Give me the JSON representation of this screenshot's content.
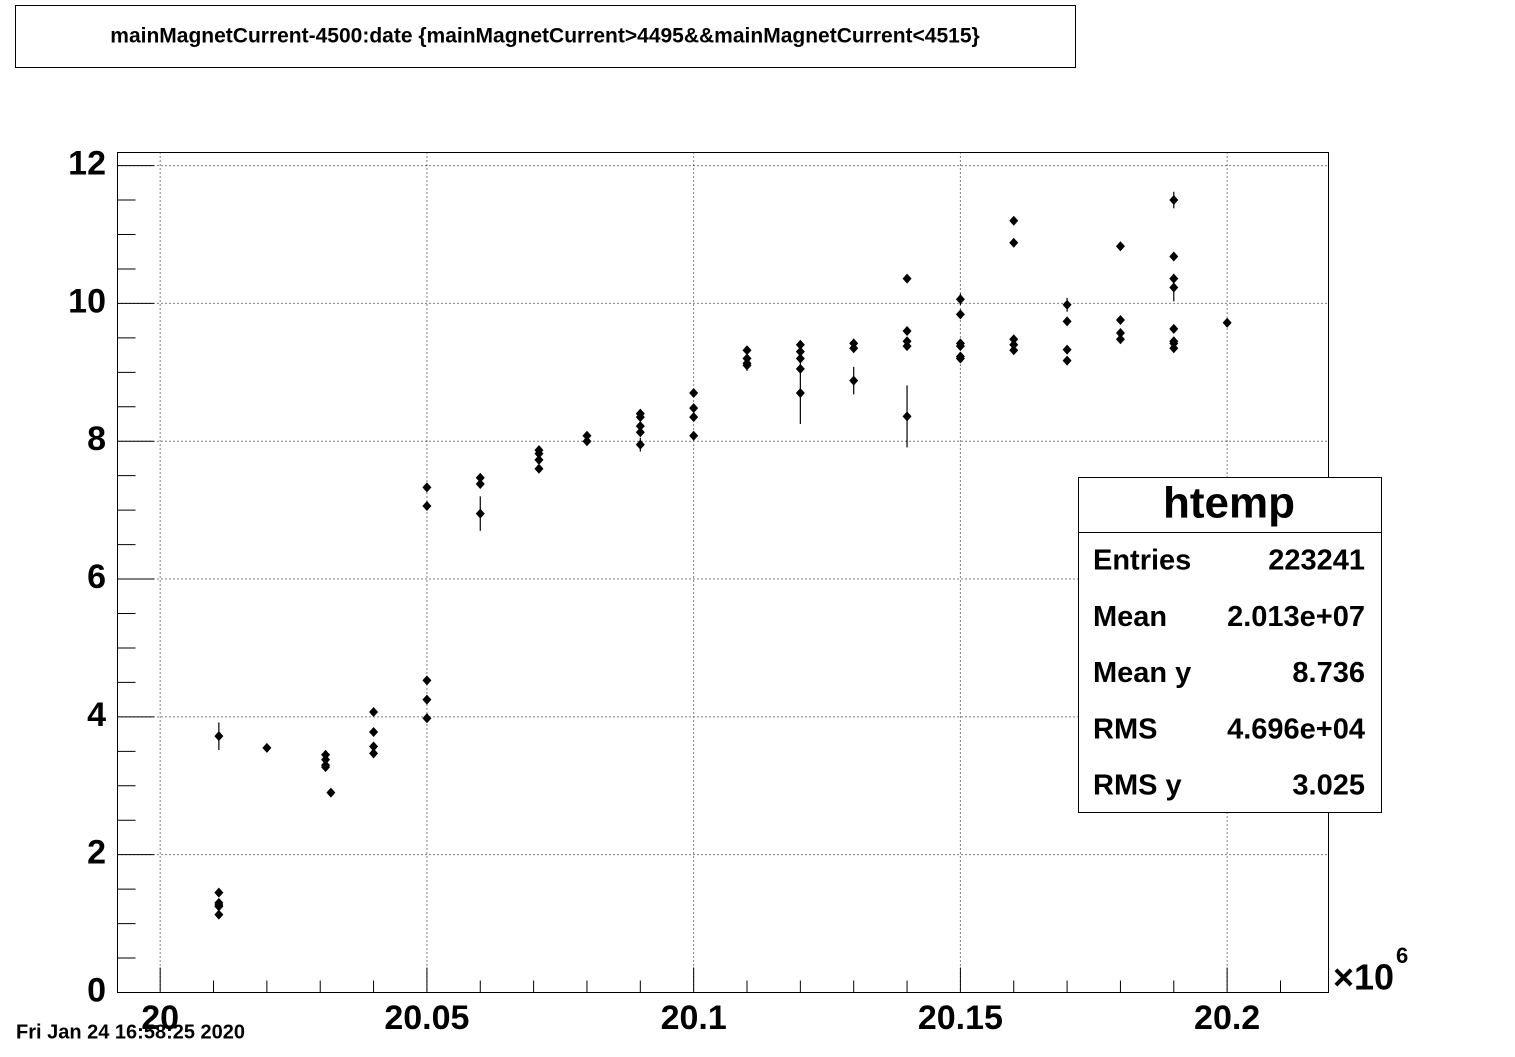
{
  "chart_data": {
    "type": "scatter",
    "title": "mainMagnetCurrent-4500:date {mainMagnetCurrent>4495&&mainMagnetCurrent<4515}",
    "timestamp": "Fri Jan 24 16:58:25 2020",
    "x_multiplier": "×10",
    "x_exponent": "6",
    "xlim": [
      19.992,
      20.219
    ],
    "ylim": [
      0,
      12.19
    ],
    "xticks": [
      20,
      20.05,
      20.1,
      20.15,
      20.2
    ],
    "yticks": [
      0,
      2,
      4,
      6,
      8,
      10,
      12
    ],
    "grid": true,
    "color": "#000000",
    "x": [
      20.011,
      20.011,
      20.011,
      20.011,
      20.011,
      20.011,
      20.02,
      20.031,
      20.031,
      20.031,
      20.031,
      20.032,
      20.04,
      20.04,
      20.04,
      20.04,
      20.05,
      20.05,
      20.05,
      20.05,
      20.05,
      20.06,
      20.06,
      20.06,
      20.071,
      20.071,
      20.071,
      20.071,
      20.08,
      20.08,
      20.09,
      20.09,
      20.09,
      20.09,
      20.09,
      20.1,
      20.1,
      20.1,
      20.1,
      20.11,
      20.11,
      20.11,
      20.11,
      20.12,
      20.12,
      20.12,
      20.12,
      20.12,
      20.13,
      20.13,
      20.13,
      20.14,
      20.14,
      20.14,
      20.14,
      20.14,
      20.15,
      20.15,
      20.15,
      20.15,
      20.15,
      20.15,
      20.16,
      20.16,
      20.16,
      20.16,
      20.16,
      20.17,
      20.17,
      20.17,
      20.17,
      20.18,
      20.18,
      20.18,
      20.18,
      20.19,
      20.19,
      20.19,
      20.19,
      20.19,
      20.19,
      20.19,
      20.19,
      20.2
    ],
    "values": [
      3.72,
      1.45,
      1.3,
      1.27,
      1.25,
      1.13,
      3.55,
      3.45,
      3.38,
      3.3,
      3.27,
      2.9,
      4.07,
      3.78,
      3.57,
      3.47,
      7.33,
      7.06,
      4.53,
      4.25,
      3.98,
      7.47,
      7.38,
      6.95,
      7.87,
      7.82,
      7.73,
      7.6,
      8.08,
      8.0,
      8.4,
      8.35,
      8.22,
      8.13,
      7.95,
      8.7,
      8.48,
      8.35,
      8.08,
      9.32,
      9.2,
      9.13,
      9.1,
      9.4,
      9.3,
      9.2,
      9.05,
      8.7,
      9.42,
      9.35,
      8.88,
      10.36,
      9.6,
      9.45,
      9.38,
      8.36,
      10.06,
      9.84,
      9.42,
      9.38,
      9.23,
      9.2,
      11.2,
      10.88,
      9.48,
      9.4,
      9.32,
      9.98,
      9.74,
      9.33,
      9.17,
      10.83,
      9.76,
      9.57,
      9.48,
      11.5,
      10.68,
      10.36,
      10.23,
      9.63,
      9.45,
      9.42,
      9.35,
      9.72
    ],
    "errors": [
      0.2,
      0.03,
      0.03,
      0.03,
      0.03,
      0.03,
      0.03,
      0.05,
      0.03,
      0.03,
      0.03,
      0.03,
      0.03,
      0.03,
      0.05,
      0.05,
      0.03,
      0.03,
      0.03,
      0.03,
      0.03,
      0.03,
      0.03,
      0.25,
      0.05,
      0.03,
      0.03,
      0.03,
      0.03,
      0.03,
      0.03,
      0.03,
      0.03,
      0.03,
      0.1,
      0.03,
      0.03,
      0.03,
      0.03,
      0.03,
      0.03,
      0.03,
      0.08,
      0.03,
      0.03,
      0.03,
      0.05,
      0.45,
      0.03,
      0.03,
      0.2,
      0.03,
      0.03,
      0.03,
      0.03,
      0.45,
      0.08,
      0.03,
      0.03,
      0.03,
      0.03,
      0.03,
      0.03,
      0.03,
      0.03,
      0.03,
      0.03,
      0.1,
      0.03,
      0.03,
      0.03,
      0.05,
      0.03,
      0.03,
      0.03,
      0.12,
      0.03,
      0.05,
      0.2,
      0.03,
      0.03,
      0.03,
      0.03,
      0.03
    ],
    "stats_box": {
      "title": "htemp",
      "rows": [
        {
          "label": "Entries",
          "value": "223241"
        },
        {
          "label": "Mean",
          "value": "2.013e+07"
        },
        {
          "label": "Mean y",
          "value": "8.736"
        },
        {
          "label": "RMS",
          "value": "4.696e+04"
        },
        {
          "label": "RMS y",
          "value": "3.025"
        }
      ]
    }
  }
}
